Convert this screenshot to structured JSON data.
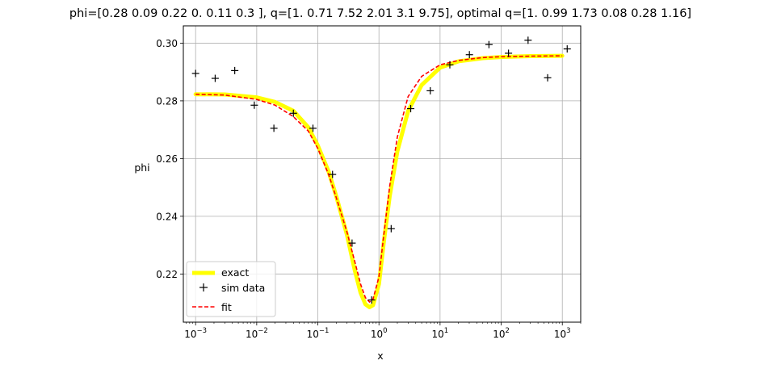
{
  "chart_data": {
    "type": "line",
    "title": "phi=[0.28 0.09 0.22 0.   0.11 0.3 ], q=[1.   0.71 7.52 2.01 3.1  9.75], optimal q=[1.   0.99 1.73 0.08 0.28 1.16]",
    "xlabel": "x",
    "ylabel": "phi",
    "xscale": "log",
    "xlim": [
      0.00063,
      2000
    ],
    "ylim": [
      0.2033,
      0.306
    ],
    "grid": true,
    "legend_position": "lower-left",
    "x_ticks": [
      {
        "value": 0.001,
        "base": "10",
        "exp": "−3"
      },
      {
        "value": 0.01,
        "base": "10",
        "exp": "−2"
      },
      {
        "value": 0.1,
        "base": "10",
        "exp": "−1"
      },
      {
        "value": 1,
        "base": "10",
        "exp": "0"
      },
      {
        "value": 10,
        "base": "10",
        "exp": "1"
      },
      {
        "value": 100,
        "base": "10",
        "exp": "2"
      },
      {
        "value": 1000,
        "base": "10",
        "exp": "3"
      }
    ],
    "y_ticks": [
      {
        "value": 0.22,
        "label": "0.22"
      },
      {
        "value": 0.24,
        "label": "0.24"
      },
      {
        "value": 0.26,
        "label": "0.26"
      },
      {
        "value": 0.28,
        "label": "0.28"
      },
      {
        "value": 0.3,
        "label": "0.30"
      }
    ],
    "series": [
      {
        "name": "exact",
        "style": "line",
        "color": "#ffff00",
        "x": [
          0.001,
          0.003,
          0.01,
          0.02,
          0.04,
          0.07,
          0.1,
          0.15,
          0.2,
          0.3,
          0.4,
          0.5,
          0.6,
          0.7,
          0.8,
          1.0,
          1.2,
          1.5,
          2.0,
          3.0,
          5.0,
          10,
          20,
          50,
          100,
          300,
          1000
        ],
        "y": [
          0.2823,
          0.2822,
          0.2812,
          0.2796,
          0.2765,
          0.2708,
          0.2645,
          0.2555,
          0.247,
          0.2335,
          0.2215,
          0.2135,
          0.2095,
          0.2085,
          0.2092,
          0.2165,
          0.231,
          0.247,
          0.2625,
          0.2765,
          0.2855,
          0.2915,
          0.2937,
          0.2948,
          0.2952,
          0.2955,
          0.2956
        ]
      },
      {
        "name": "sim data",
        "style": "marker",
        "marker": "+",
        "color": "#000000",
        "x": [
          0.001,
          0.00209,
          0.00437,
          0.00913,
          0.0191,
          0.0398,
          0.0832,
          0.174,
          0.363,
          0.759,
          1.585,
          3.31,
          6.92,
          14.45,
          30.2,
          63.1,
          131.8,
          275.4,
          575.4,
          1202
        ],
        "y": [
          0.2895,
          0.2878,
          0.2905,
          0.2785,
          0.2705,
          0.2757,
          0.2705,
          0.2545,
          0.2307,
          0.211,
          0.2357,
          0.2773,
          0.2835,
          0.2925,
          0.296,
          0.2995,
          0.2965,
          0.301,
          0.288,
          0.298
        ]
      },
      {
        "name": "fit",
        "style": "dashed",
        "color": "#ff0000",
        "x": [
          0.001,
          0.003,
          0.01,
          0.02,
          0.04,
          0.07,
          0.1,
          0.15,
          0.2,
          0.3,
          0.4,
          0.5,
          0.6,
          0.7,
          0.8,
          1.0,
          1.2,
          1.5,
          2.0,
          3.0,
          5.0,
          10,
          20,
          50,
          100,
          300,
          1000
        ],
        "y": [
          0.2823,
          0.282,
          0.2805,
          0.2785,
          0.2745,
          0.2695,
          0.2635,
          0.2545,
          0.2465,
          0.2345,
          0.2245,
          0.2165,
          0.2118,
          0.2103,
          0.2113,
          0.219,
          0.2335,
          0.2505,
          0.2675,
          0.2815,
          0.2885,
          0.2925,
          0.294,
          0.295,
          0.2953,
          0.2955,
          0.2956
        ]
      }
    ]
  }
}
